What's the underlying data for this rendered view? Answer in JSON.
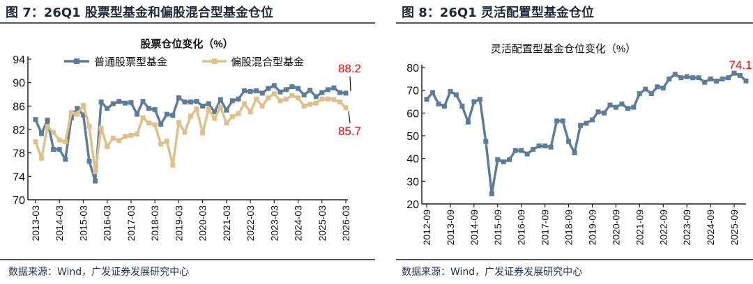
{
  "panels": [
    {
      "header": "图 7：26Q1 股票型基金和偏股混合型基金仓位",
      "source": "数据来源：Wind，广发证券发展研究中心"
    },
    {
      "header": "图 8：26Q1 灵活配置型基金仓位",
      "source": "数据来源：Wind，广发证券发展研究中心"
    }
  ],
  "chart_data": [
    {
      "type": "line",
      "title": "股票仓位变化（%）",
      "ylim": [
        70,
        94
      ],
      "yticks": [
        70,
        74,
        78,
        82,
        86,
        90,
        94
      ],
      "x_start": "2013-03",
      "x_end": "2026-03",
      "frequency": "quarterly",
      "xtick_labels": [
        "2013-03",
        "2014-03",
        "2015-03",
        "2016-03",
        "2017-03",
        "2018-03",
        "2019-03",
        "2020-03",
        "2021-03",
        "2022-03",
        "2023-03",
        "2024-03",
        "2025-03",
        "2026-03"
      ],
      "legend": "top",
      "grid": false,
      "series": [
        {
          "name": "普通股票型基金",
          "color": "#5B7D99",
          "values": [
            83.7,
            81.3,
            83.6,
            78.6,
            78.6,
            76.9,
            84.0,
            85.6,
            84.5,
            76.6,
            73.2,
            86.7,
            85.6,
            86.4,
            86.8,
            86.5,
            86.6,
            84.6,
            86.8,
            85.6,
            85.4,
            82.9,
            84.6,
            84.4,
            87.4,
            86.7,
            86.7,
            86.8,
            86.0,
            86.4,
            85.0,
            87.1,
            85.3,
            86.9,
            87.2,
            88.6,
            88.5,
            88.6,
            88.2,
            89.0,
            89.5,
            88.4,
            88.8,
            89.3,
            89.0,
            87.9,
            88.7,
            87.6,
            88.3,
            88.8,
            89.1,
            88.3,
            88.2
          ]
        },
        {
          "name": "偏股混合型基金",
          "color": "#E0C08A",
          "values": [
            79.9,
            77.1,
            82.5,
            81.5,
            80.2,
            79.9,
            84.9,
            84.6,
            86.1,
            82.5,
            74.8,
            82.2,
            79.1,
            80.5,
            80.1,
            80.8,
            81.0,
            81.2,
            84.0,
            83.1,
            82.8,
            79.5,
            80.0,
            75.9,
            83.2,
            81.5,
            84.3,
            85.5,
            81.4,
            85.4,
            83.9,
            85.8,
            83.1,
            84.2,
            84.7,
            86.4,
            85.0,
            87.2,
            86.0,
            87.4,
            88.1,
            86.9,
            87.2,
            87.8,
            87.4,
            86.0,
            86.3,
            86.5,
            87.2,
            87.2,
            87.1,
            86.7,
            85.7
          ]
        }
      ],
      "annotations": [
        {
          "text": "88.2",
          "color": "#FF0000"
        },
        {
          "text": "85.7",
          "color": "#FF0000"
        }
      ]
    },
    {
      "type": "line",
      "title": "灵活配置型基金仓位变化（%）",
      "ylim": [
        20,
        80
      ],
      "yticks": [
        20,
        30,
        40,
        50,
        60,
        70,
        80
      ],
      "x_start": "2012-09",
      "x_end": "2026-03",
      "frequency": "quarterly",
      "xtick_labels": [
        "2012-09",
        "2013-09",
        "2014-09",
        "2015-09",
        "2016-09",
        "2017-09",
        "2018-09",
        "2019-09",
        "2020-09",
        "2021-09",
        "2022-09",
        "2023-09",
        "2024-09",
        "2025-09"
      ],
      "grid": false,
      "series": [
        {
          "color": "#5B7D99",
          "values": [
            66,
            69,
            64,
            63,
            69.5,
            68,
            63,
            56,
            65,
            66,
            47.5,
            24.5,
            39.5,
            38.5,
            39.5,
            43.5,
            43.5,
            42,
            44,
            45.5,
            45.5,
            45,
            56.5,
            56.5,
            47.5,
            42.5,
            54.5,
            55.5,
            57,
            60.5,
            60,
            63.5,
            62.5,
            64,
            62,
            62.5,
            68.5,
            70.5,
            68.5,
            71.5,
            71,
            75,
            77,
            75.5,
            76,
            75.5,
            75.5,
            73.5,
            75,
            74,
            75,
            75.5,
            77.5,
            76.5,
            74.1
          ]
        }
      ],
      "annotations": [
        {
          "text": "74.1",
          "color": "#FF0000"
        }
      ]
    }
  ]
}
